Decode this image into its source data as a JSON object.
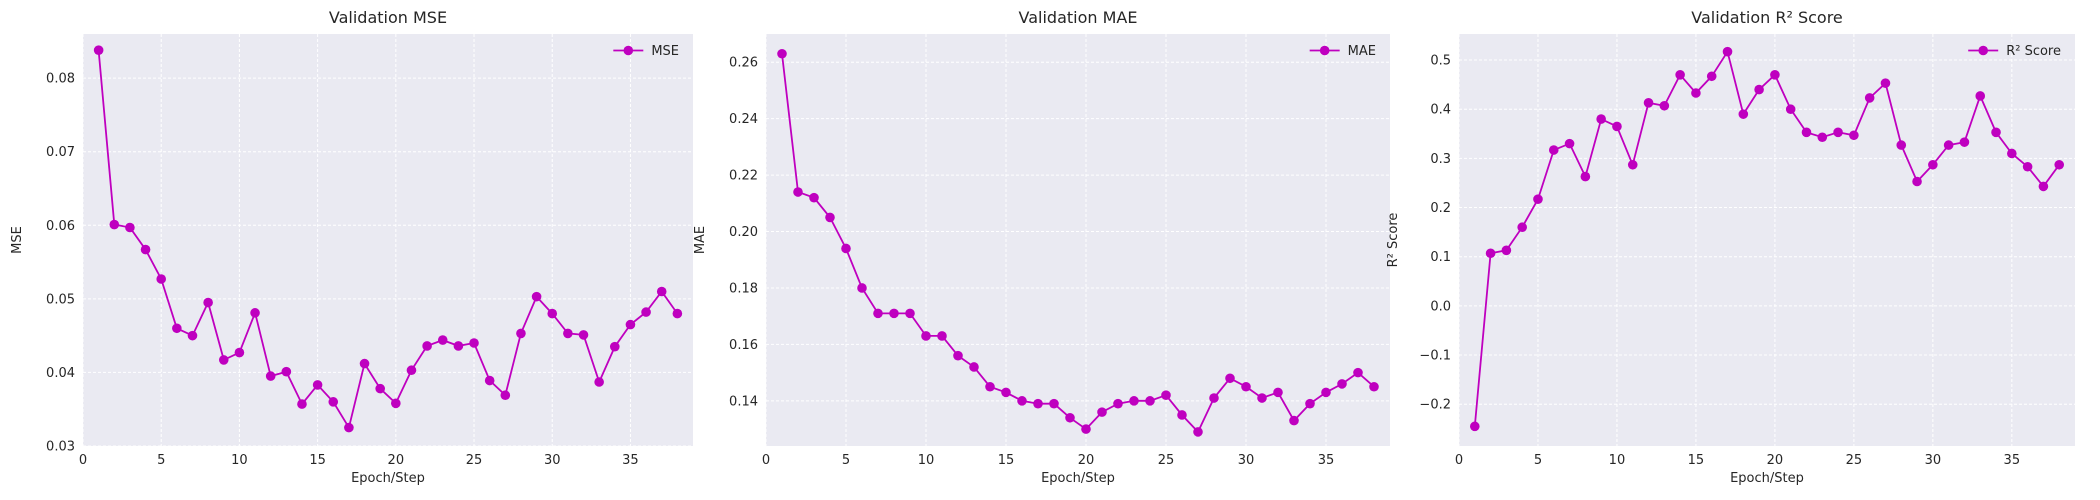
{
  "style": {
    "plot_bg": "#eaeaf2",
    "grid_color": "#ffffff",
    "line_color": "#bf00bf",
    "text_color": "#262626"
  },
  "chart_data": [
    {
      "type": "line",
      "title": "Validation MSE",
      "xlabel": "Epoch/Step",
      "ylabel": "MSE",
      "xlim": [
        0,
        39
      ],
      "ylim": [
        0.03,
        0.086
      ],
      "xticks": [
        0,
        5,
        10,
        15,
        20,
        25,
        30,
        35
      ],
      "yticks": [
        0.03,
        0.04,
        0.05,
        0.06,
        0.07,
        0.08
      ],
      "ytick_labels": [
        "0.03",
        "0.04",
        "0.05",
        "0.06",
        "0.07",
        "0.08"
      ],
      "legend": "top-right",
      "series": [
        {
          "name": "MSE",
          "x": [
            1,
            2,
            3,
            4,
            5,
            6,
            7,
            8,
            9,
            10,
            11,
            12,
            13,
            14,
            15,
            16,
            17,
            18,
            19,
            20,
            21,
            22,
            23,
            24,
            25,
            26,
            27,
            28,
            29,
            30,
            31,
            32,
            33,
            34,
            35,
            36,
            37,
            38
          ],
          "values": [
            0.0838,
            0.0601,
            0.0597,
            0.0567,
            0.0527,
            0.046,
            0.045,
            0.0495,
            0.0417,
            0.0427,
            0.0481,
            0.0395,
            0.0401,
            0.0357,
            0.0383,
            0.036,
            0.0325,
            0.0412,
            0.0378,
            0.0358,
            0.0403,
            0.0436,
            0.0444,
            0.0436,
            0.044,
            0.0389,
            0.0369,
            0.0453,
            0.0503,
            0.048,
            0.0453,
            0.0451,
            0.0387,
            0.0435,
            0.0465,
            0.0482,
            0.051,
            0.048
          ]
        }
      ]
    },
    {
      "type": "line",
      "title": "Validation MAE",
      "xlabel": "Epoch/Step",
      "ylabel": "MAE",
      "xlim": [
        0,
        39
      ],
      "ylim": [
        0.124,
        0.27
      ],
      "xticks": [
        0,
        5,
        10,
        15,
        20,
        25,
        30,
        35
      ],
      "yticks": [
        0.14,
        0.16,
        0.18,
        0.2,
        0.22,
        0.24,
        0.26
      ],
      "ytick_labels": [
        "0.14",
        "0.16",
        "0.18",
        "0.20",
        "0.22",
        "0.24",
        "0.26"
      ],
      "legend": "top-right",
      "series": [
        {
          "name": "MAE",
          "x": [
            1,
            2,
            3,
            4,
            5,
            6,
            7,
            8,
            9,
            10,
            11,
            12,
            13,
            14,
            15,
            16,
            17,
            18,
            19,
            20,
            21,
            22,
            23,
            24,
            25,
            26,
            27,
            28,
            29,
            30,
            31,
            32,
            33,
            34,
            35,
            36,
            37,
            38
          ],
          "values": [
            0.263,
            0.214,
            0.212,
            0.205,
            0.194,
            0.18,
            0.171,
            0.171,
            0.171,
            0.163,
            0.163,
            0.156,
            0.152,
            0.145,
            0.143,
            0.14,
            0.139,
            0.139,
            0.134,
            0.13,
            0.136,
            0.139,
            0.14,
            0.14,
            0.142,
            0.135,
            0.129,
            0.141,
            0.148,
            0.145,
            0.141,
            0.143,
            0.133,
            0.139,
            0.143,
            0.146,
            0.15,
            0.145
          ]
        }
      ]
    },
    {
      "type": "line",
      "title": "Validation R² Score",
      "xlabel": "Epoch/Step",
      "ylabel": "R² Score",
      "xlim": [
        0,
        39
      ],
      "ylim": [
        -0.285,
        0.553
      ],
      "xticks": [
        0,
        5,
        10,
        15,
        20,
        25,
        30,
        35
      ],
      "yticks": [
        -0.2,
        -0.1,
        0.0,
        0.1,
        0.2,
        0.3,
        0.4,
        0.5
      ],
      "ytick_labels": [
        "−0.2",
        "−0.1",
        "0.0",
        "0.1",
        "0.2",
        "0.3",
        "0.4",
        "0.5"
      ],
      "legend": "top-right",
      "series": [
        {
          "name": "R² Score",
          "x": [
            1,
            2,
            3,
            4,
            5,
            6,
            7,
            8,
            9,
            10,
            11,
            12,
            13,
            14,
            15,
            16,
            17,
            18,
            19,
            20,
            21,
            22,
            23,
            24,
            25,
            26,
            27,
            28,
            29,
            30,
            31,
            32,
            33,
            34,
            35,
            36,
            37,
            38
          ],
          "values": [
            -0.245,
            0.107,
            0.113,
            0.16,
            0.217,
            0.317,
            0.33,
            0.263,
            0.38,
            0.365,
            0.287,
            0.413,
            0.407,
            0.47,
            0.433,
            0.467,
            0.517,
            0.39,
            0.44,
            0.47,
            0.4,
            0.353,
            0.343,
            0.353,
            0.347,
            0.423,
            0.453,
            0.327,
            0.253,
            0.287,
            0.327,
            0.333,
            0.427,
            0.353,
            0.31,
            0.283,
            0.243,
            0.287
          ]
        }
      ]
    }
  ]
}
